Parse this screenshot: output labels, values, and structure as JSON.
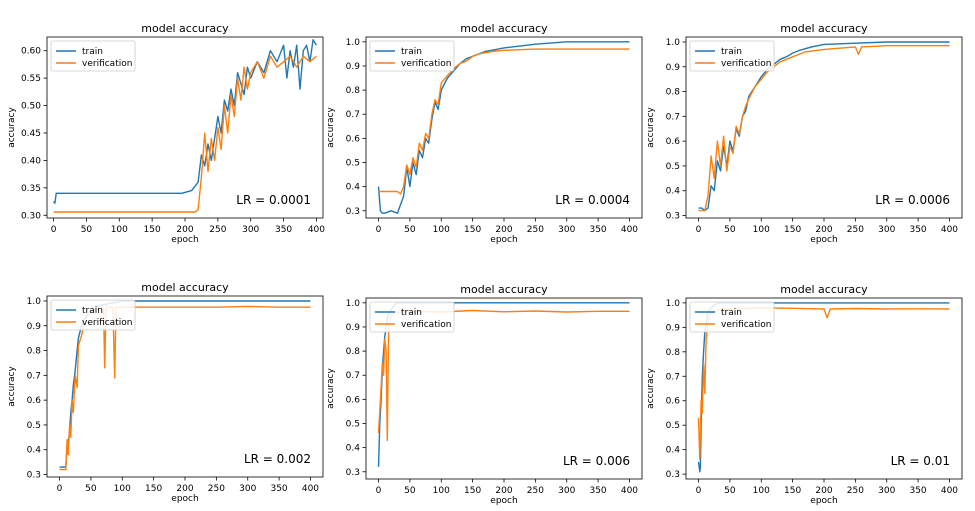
{
  "colors": {
    "train": "#1f77b4",
    "verification": "#ff7f0e"
  },
  "chart_data": [
    {
      "type": "line",
      "title": "model accuracy",
      "xlabel": "epoch",
      "ylabel": "accuracy",
      "annotation": "LR = 0.0001",
      "legend_position": "top-left",
      "xlim": [
        -10,
        410
      ],
      "ylim": [
        0.295,
        0.625
      ],
      "xticks": [
        0,
        50,
        100,
        150,
        200,
        250,
        300,
        350,
        400
      ],
      "yticks": [
        0.3,
        0.35,
        0.4,
        0.45,
        0.5,
        0.55,
        0.6
      ],
      "ytick_labels": [
        "0.30",
        "0.35",
        "0.40",
        "0.45",
        "0.50",
        "0.55",
        "0.60"
      ],
      "series": [
        {
          "name": "train",
          "color": "#1f77b4",
          "x": [
            0,
            2,
            4,
            50,
            100,
            150,
            195,
            210,
            220,
            225,
            230,
            235,
            240,
            245,
            250,
            255,
            260,
            265,
            270,
            275,
            280,
            285,
            290,
            295,
            300,
            310,
            320,
            330,
            340,
            350,
            355,
            360,
            365,
            370,
            375,
            380,
            385,
            390,
            395,
            400
          ],
          "y": [
            0.325,
            0.322,
            0.34,
            0.34,
            0.34,
            0.34,
            0.34,
            0.345,
            0.36,
            0.41,
            0.39,
            0.43,
            0.4,
            0.44,
            0.48,
            0.45,
            0.51,
            0.49,
            0.53,
            0.5,
            0.56,
            0.54,
            0.52,
            0.57,
            0.55,
            0.58,
            0.56,
            0.6,
            0.58,
            0.61,
            0.55,
            0.6,
            0.57,
            0.61,
            0.53,
            0.6,
            0.61,
            0.58,
            0.62,
            0.61
          ]
        },
        {
          "name": "verification",
          "color": "#ff7f0e",
          "x": [
            0,
            50,
            100,
            150,
            200,
            215,
            220,
            225,
            230,
            235,
            240,
            245,
            250,
            255,
            260,
            265,
            270,
            275,
            280,
            285,
            290,
            295,
            300,
            310,
            320,
            330,
            340,
            350,
            360,
            370,
            380,
            390,
            400
          ],
          "y": [
            0.306,
            0.306,
            0.306,
            0.306,
            0.306,
            0.306,
            0.31,
            0.37,
            0.45,
            0.38,
            0.44,
            0.4,
            0.46,
            0.42,
            0.5,
            0.45,
            0.52,
            0.48,
            0.55,
            0.51,
            0.57,
            0.53,
            0.56,
            0.58,
            0.55,
            0.59,
            0.57,
            0.58,
            0.59,
            0.57,
            0.59,
            0.58,
            0.59
          ]
        }
      ]
    },
    {
      "type": "line",
      "title": "model accuracy",
      "xlabel": "epoch",
      "ylabel": "accuracy",
      "annotation": "LR = 0.0004",
      "legend_position": "top-left",
      "xlim": [
        -20,
        420
      ],
      "ylim": [
        0.27,
        1.02
      ],
      "xticks": [
        0,
        50,
        100,
        150,
        200,
        250,
        300,
        350,
        400
      ],
      "yticks": [
        0.3,
        0.4,
        0.5,
        0.6,
        0.7,
        0.8,
        0.9,
        1.0
      ],
      "ytick_labels": [
        "0.3",
        "0.4",
        "0.5",
        "0.6",
        "0.7",
        "0.8",
        "0.9",
        "1.0"
      ],
      "series": [
        {
          "name": "train",
          "color": "#1f77b4",
          "x": [
            0,
            3,
            6,
            10,
            20,
            30,
            40,
            45,
            50,
            55,
            60,
            65,
            70,
            75,
            80,
            85,
            90,
            95,
            100,
            110,
            120,
            130,
            140,
            150,
            160,
            170,
            180,
            200,
            250,
            300,
            350,
            400
          ],
          "y": [
            0.4,
            0.3,
            0.29,
            0.29,
            0.3,
            0.29,
            0.36,
            0.48,
            0.4,
            0.5,
            0.45,
            0.55,
            0.52,
            0.6,
            0.58,
            0.68,
            0.75,
            0.72,
            0.8,
            0.85,
            0.88,
            0.91,
            0.93,
            0.94,
            0.95,
            0.96,
            0.965,
            0.975,
            0.99,
            1.0,
            1.0,
            1.0
          ]
        },
        {
          "name": "verification",
          "color": "#ff7f0e",
          "x": [
            0,
            5,
            10,
            20,
            30,
            35,
            40,
            45,
            50,
            55,
            60,
            65,
            70,
            75,
            80,
            85,
            90,
            95,
            100,
            110,
            120,
            130,
            140,
            150,
            160,
            180,
            200,
            250,
            300,
            350,
            400
          ],
          "y": [
            0.38,
            0.38,
            0.38,
            0.38,
            0.38,
            0.37,
            0.4,
            0.49,
            0.45,
            0.52,
            0.48,
            0.58,
            0.55,
            0.62,
            0.6,
            0.7,
            0.76,
            0.74,
            0.83,
            0.86,
            0.89,
            0.91,
            0.92,
            0.94,
            0.95,
            0.96,
            0.965,
            0.97,
            0.97,
            0.97,
            0.97
          ]
        }
      ]
    },
    {
      "type": "line",
      "title": "model accuracy",
      "xlabel": "epoch",
      "ylabel": "accuracy",
      "annotation": "LR = 0.0006",
      "legend_position": "top-left",
      "xlim": [
        -20,
        420
      ],
      "ylim": [
        0.29,
        1.02
      ],
      "xticks": [
        0,
        50,
        100,
        150,
        200,
        250,
        300,
        350,
        400
      ],
      "yticks": [
        0.3,
        0.4,
        0.5,
        0.6,
        0.7,
        0.8,
        0.9,
        1.0
      ],
      "ytick_labels": [
        "0.3",
        "0.4",
        "0.5",
        "0.6",
        "0.7",
        "0.8",
        "0.9",
        "1.0"
      ],
      "series": [
        {
          "name": "train",
          "color": "#1f77b4",
          "x": [
            0,
            5,
            10,
            15,
            20,
            25,
            30,
            35,
            40,
            45,
            50,
            55,
            60,
            65,
            70,
            75,
            80,
            90,
            100,
            110,
            120,
            130,
            140,
            150,
            160,
            180,
            200,
            250,
            300,
            350,
            400
          ],
          "y": [
            0.33,
            0.33,
            0.32,
            0.33,
            0.42,
            0.4,
            0.52,
            0.48,
            0.58,
            0.5,
            0.6,
            0.56,
            0.65,
            0.62,
            0.7,
            0.72,
            0.78,
            0.82,
            0.86,
            0.89,
            0.91,
            0.93,
            0.94,
            0.955,
            0.965,
            0.98,
            0.99,
            0.995,
            1.0,
            1.0,
            1.0
          ]
        },
        {
          "name": "verification",
          "color": "#ff7f0e",
          "x": [
            0,
            10,
            15,
            20,
            25,
            30,
            35,
            40,
            45,
            50,
            55,
            60,
            65,
            70,
            75,
            80,
            90,
            100,
            110,
            120,
            130,
            140,
            150,
            170,
            200,
            250,
            255,
            260,
            300,
            350,
            400
          ],
          "y": [
            0.32,
            0.32,
            0.38,
            0.54,
            0.45,
            0.6,
            0.5,
            0.62,
            0.48,
            0.58,
            0.55,
            0.66,
            0.63,
            0.7,
            0.74,
            0.77,
            0.82,
            0.85,
            0.88,
            0.9,
            0.92,
            0.93,
            0.94,
            0.96,
            0.97,
            0.98,
            0.95,
            0.98,
            0.985,
            0.985,
            0.985
          ]
        }
      ]
    },
    {
      "type": "line",
      "title": "model accuracy",
      "xlabel": "epoch",
      "ylabel": "accuracy",
      "annotation": "LR = 0.002",
      "legend_position": "top-left",
      "xlim": [
        -20,
        420
      ],
      "ylim": [
        0.29,
        1.02
      ],
      "xticks": [
        0,
        50,
        100,
        150,
        200,
        250,
        300,
        350,
        400
      ],
      "yticks": [
        0.3,
        0.4,
        0.5,
        0.6,
        0.7,
        0.8,
        0.9,
        1.0
      ],
      "ytick_labels": [
        "0.3",
        "0.4",
        "0.5",
        "0.6",
        "0.7",
        "0.8",
        "0.9",
        "1.0"
      ],
      "series": [
        {
          "name": "train",
          "color": "#1f77b4",
          "x": [
            0,
            5,
            10,
            12,
            15,
            18,
            20,
            22,
            25,
            28,
            30,
            35,
            40,
            50,
            60,
            80,
            100,
            200,
            300,
            400
          ],
          "y": [
            0.33,
            0.33,
            0.33,
            0.42,
            0.45,
            0.55,
            0.6,
            0.66,
            0.72,
            0.8,
            0.85,
            0.9,
            0.93,
            0.96,
            0.98,
            0.99,
            1.0,
            1.0,
            1.0,
            1.0
          ]
        },
        {
          "name": "verification",
          "color": "#ff7f0e",
          "x": [
            0,
            10,
            12,
            14,
            16,
            18,
            20,
            22,
            25,
            28,
            30,
            35,
            40,
            45,
            50,
            60,
            70,
            72,
            74,
            80,
            85,
            88,
            90,
            92,
            100,
            150,
            200,
            250,
            300,
            350,
            400
          ],
          "y": [
            0.32,
            0.32,
            0.44,
            0.38,
            0.5,
            0.45,
            0.6,
            0.55,
            0.7,
            0.65,
            0.82,
            0.86,
            0.92,
            0.94,
            0.96,
            0.97,
            0.975,
            0.73,
            0.975,
            0.975,
            0.975,
            0.69,
            0.975,
            0.975,
            0.975,
            0.975,
            0.975,
            0.975,
            0.978,
            0.975,
            0.975
          ]
        }
      ]
    },
    {
      "type": "line",
      "title": "model accuracy",
      "xlabel": "epoch",
      "ylabel": "accuracy",
      "annotation": "LR = 0.006",
      "legend_position": "top-left",
      "xlim": [
        -20,
        420
      ],
      "ylim": [
        0.27,
        1.02
      ],
      "xticks": [
        0,
        50,
        100,
        150,
        200,
        250,
        300,
        350,
        400
      ],
      "yticks": [
        0.3,
        0.4,
        0.5,
        0.6,
        0.7,
        0.8,
        0.9,
        1.0
      ],
      "ytick_labels": [
        "0.3",
        "0.4",
        "0.5",
        "0.6",
        "0.7",
        "0.8",
        "0.9",
        "1.0"
      ],
      "series": [
        {
          "name": "train",
          "color": "#1f77b4",
          "x": [
            0,
            2,
            4,
            6,
            8,
            10,
            12,
            15,
            20,
            25,
            30,
            50,
            100,
            200,
            300,
            400
          ],
          "y": [
            0.32,
            0.5,
            0.6,
            0.72,
            0.8,
            0.86,
            0.9,
            0.95,
            0.97,
            0.99,
            1.0,
            1.0,
            1.0,
            1.0,
            1.0,
            1.0
          ]
        },
        {
          "name": "verification",
          "color": "#ff7f0e",
          "x": [
            0,
            2,
            4,
            6,
            8,
            10,
            12,
            14,
            16,
            18,
            20,
            25,
            30,
            50,
            100,
            150,
            200,
            250,
            300,
            350,
            400
          ],
          "y": [
            0.46,
            0.55,
            0.65,
            0.75,
            0.7,
            0.85,
            0.8,
            0.43,
            0.9,
            0.93,
            0.95,
            0.96,
            0.96,
            0.965,
            0.962,
            0.968,
            0.963,
            0.966,
            0.962,
            0.965,
            0.965
          ]
        }
      ]
    },
    {
      "type": "line",
      "title": "model accuracy",
      "xlabel": "epoch",
      "ylabel": "accuracy",
      "annotation": "LR = 0.01",
      "legend_position": "top-left",
      "xlim": [
        -20,
        420
      ],
      "ylim": [
        0.28,
        1.02
      ],
      "xticks": [
        0,
        50,
        100,
        150,
        200,
        250,
        300,
        350,
        400
      ],
      "yticks": [
        0.3,
        0.4,
        0.5,
        0.6,
        0.7,
        0.8,
        0.9,
        1.0
      ],
      "ytick_labels": [
        "0.3",
        "0.4",
        "0.5",
        "0.6",
        "0.7",
        "0.8",
        "0.9",
        "1.0"
      ],
      "series": [
        {
          "name": "train",
          "color": "#1f77b4",
          "x": [
            0,
            2,
            3,
            4,
            6,
            8,
            10,
            12,
            15,
            20,
            25,
            30,
            50,
            100,
            200,
            300,
            400
          ],
          "y": [
            0.35,
            0.31,
            0.33,
            0.5,
            0.7,
            0.8,
            0.88,
            0.92,
            0.96,
            0.98,
            0.99,
            1.0,
            1.0,
            1.0,
            1.0,
            1.0,
            1.0
          ]
        },
        {
          "name": "verification",
          "color": "#ff7f0e",
          "x": [
            0,
            2,
            4,
            6,
            8,
            10,
            12,
            14,
            16,
            18,
            20,
            30,
            50,
            100,
            150,
            200,
            205,
            210,
            250,
            300,
            350,
            400
          ],
          "y": [
            0.53,
            0.36,
            0.6,
            0.55,
            0.75,
            0.63,
            0.85,
            0.9,
            0.93,
            0.95,
            0.96,
            0.97,
            0.975,
            0.98,
            0.978,
            0.975,
            0.94,
            0.975,
            0.977,
            0.975,
            0.976,
            0.975
          ]
        }
      ]
    }
  ]
}
